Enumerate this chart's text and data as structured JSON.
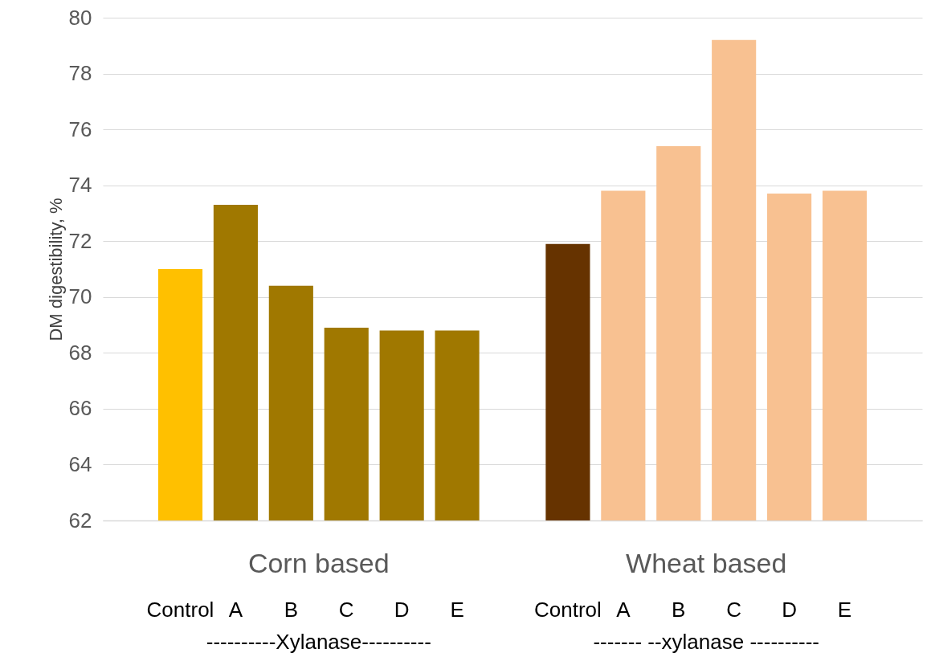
{
  "chart_data": {
    "type": "bar",
    "ylabel": "DM digestibility, %",
    "categories": [
      "Control",
      "A",
      "B",
      "C",
      "D",
      "E",
      null,
      "Control",
      "A",
      "B",
      "C",
      "D",
      "E"
    ],
    "values": [
      71.0,
      73.3,
      70.4,
      68.9,
      68.8,
      68.8,
      null,
      71.9,
      73.8,
      75.4,
      79.2,
      73.7,
      73.8
    ],
    "colors": [
      "#ffc000",
      "#a07800",
      "#a07800",
      "#a07800",
      "#a07800",
      "#a07800",
      "#a07800",
      "#663300",
      "#f8c191",
      "#f8c191",
      "#f8c191",
      "#f8c191",
      "#f8c191"
    ],
    "ylim": [
      62,
      80
    ],
    "yticks": [
      62,
      64,
      66,
      68,
      70,
      72,
      74,
      76,
      78,
      80
    ],
    "grid": "y",
    "annotations": [
      "Corn based",
      "Wheat based",
      "----------Xylanase----------",
      "------- --xylanase ----------"
    ]
  }
}
